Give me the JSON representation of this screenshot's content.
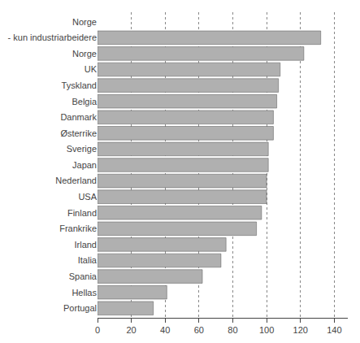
{
  "chart_data": {
    "type": "bar",
    "orientation": "horizontal",
    "categories": [
      "Norge",
      "- kun industriarbeidere",
      "Norge",
      "UK",
      "Tyskland",
      "Belgia",
      "Danmark",
      "Østerrike",
      "Sverige",
      "Japan",
      "Nederland",
      "USA",
      "Finland",
      "Frankrike",
      "Irland",
      "Italia",
      "Spania",
      "Hellas",
      "Portugal"
    ],
    "values": [
      null,
      132,
      122,
      108,
      107,
      106,
      104,
      104,
      101,
      101,
      100,
      100,
      97,
      94,
      76,
      73,
      62,
      41,
      33
    ],
    "color": "#b0b0b0",
    "xlim": [
      0,
      148
    ],
    "xticks": [
      0,
      20,
      40,
      60,
      80,
      100,
      120,
      140
    ],
    "grid": true
  }
}
